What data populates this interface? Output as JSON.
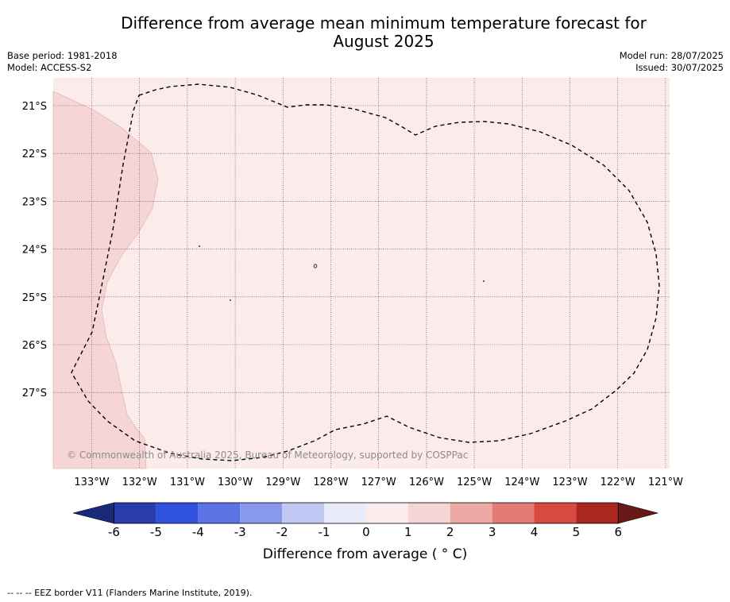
{
  "title": {
    "line1": "Difference from average mean minimum temperature forecast for",
    "line2": "August 2025"
  },
  "meta": {
    "base_period": "Base period: 1981-2018",
    "model": "Model: ACCESS-S2",
    "model_run": "Model run: 28/07/2025",
    "issued": "Issued: 30/07/2025"
  },
  "map": {
    "lat_labels": [
      "21°S",
      "22°S",
      "23°S",
      "24°S",
      "25°S",
      "26°S",
      "27°S"
    ],
    "lon_labels": [
      "133°W",
      "132°W",
      "131°W",
      "130°W",
      "129°W",
      "128°W",
      "127°W",
      "126°W",
      "125°W",
      "124°W",
      "123°W",
      "122°W",
      "121°W"
    ],
    "copyright": "© Commonwealth of Australia 2025, Bureau of Meteorology, supported by COSPPac",
    "zone_colors": {
      "zero_to_one": "#fbeceb",
      "one_to_two": "#f6d6d4"
    }
  },
  "colorbar": {
    "ticks": [
      "-6",
      "-5",
      "-4",
      "-3",
      "-2",
      "-1",
      "0",
      "1",
      "2",
      "3",
      "4",
      "5",
      "6"
    ],
    "colors": [
      "#2a3ca8",
      "#3050df",
      "#5b73e5",
      "#8898ec",
      "#c0c7f3",
      "#e9ebfb",
      "#fbeceb",
      "#f6d6d4",
      "#ecaaa4",
      "#e47c74",
      "#d8493f",
      "#a9271f"
    ],
    "under_color": "#1a2a7a",
    "over_color": "#6a1a16",
    "label": "Difference from average ( ° C)"
  },
  "footer": "--  --  -- EEZ border V11 (Flanders Marine Institute, 2019)."
}
